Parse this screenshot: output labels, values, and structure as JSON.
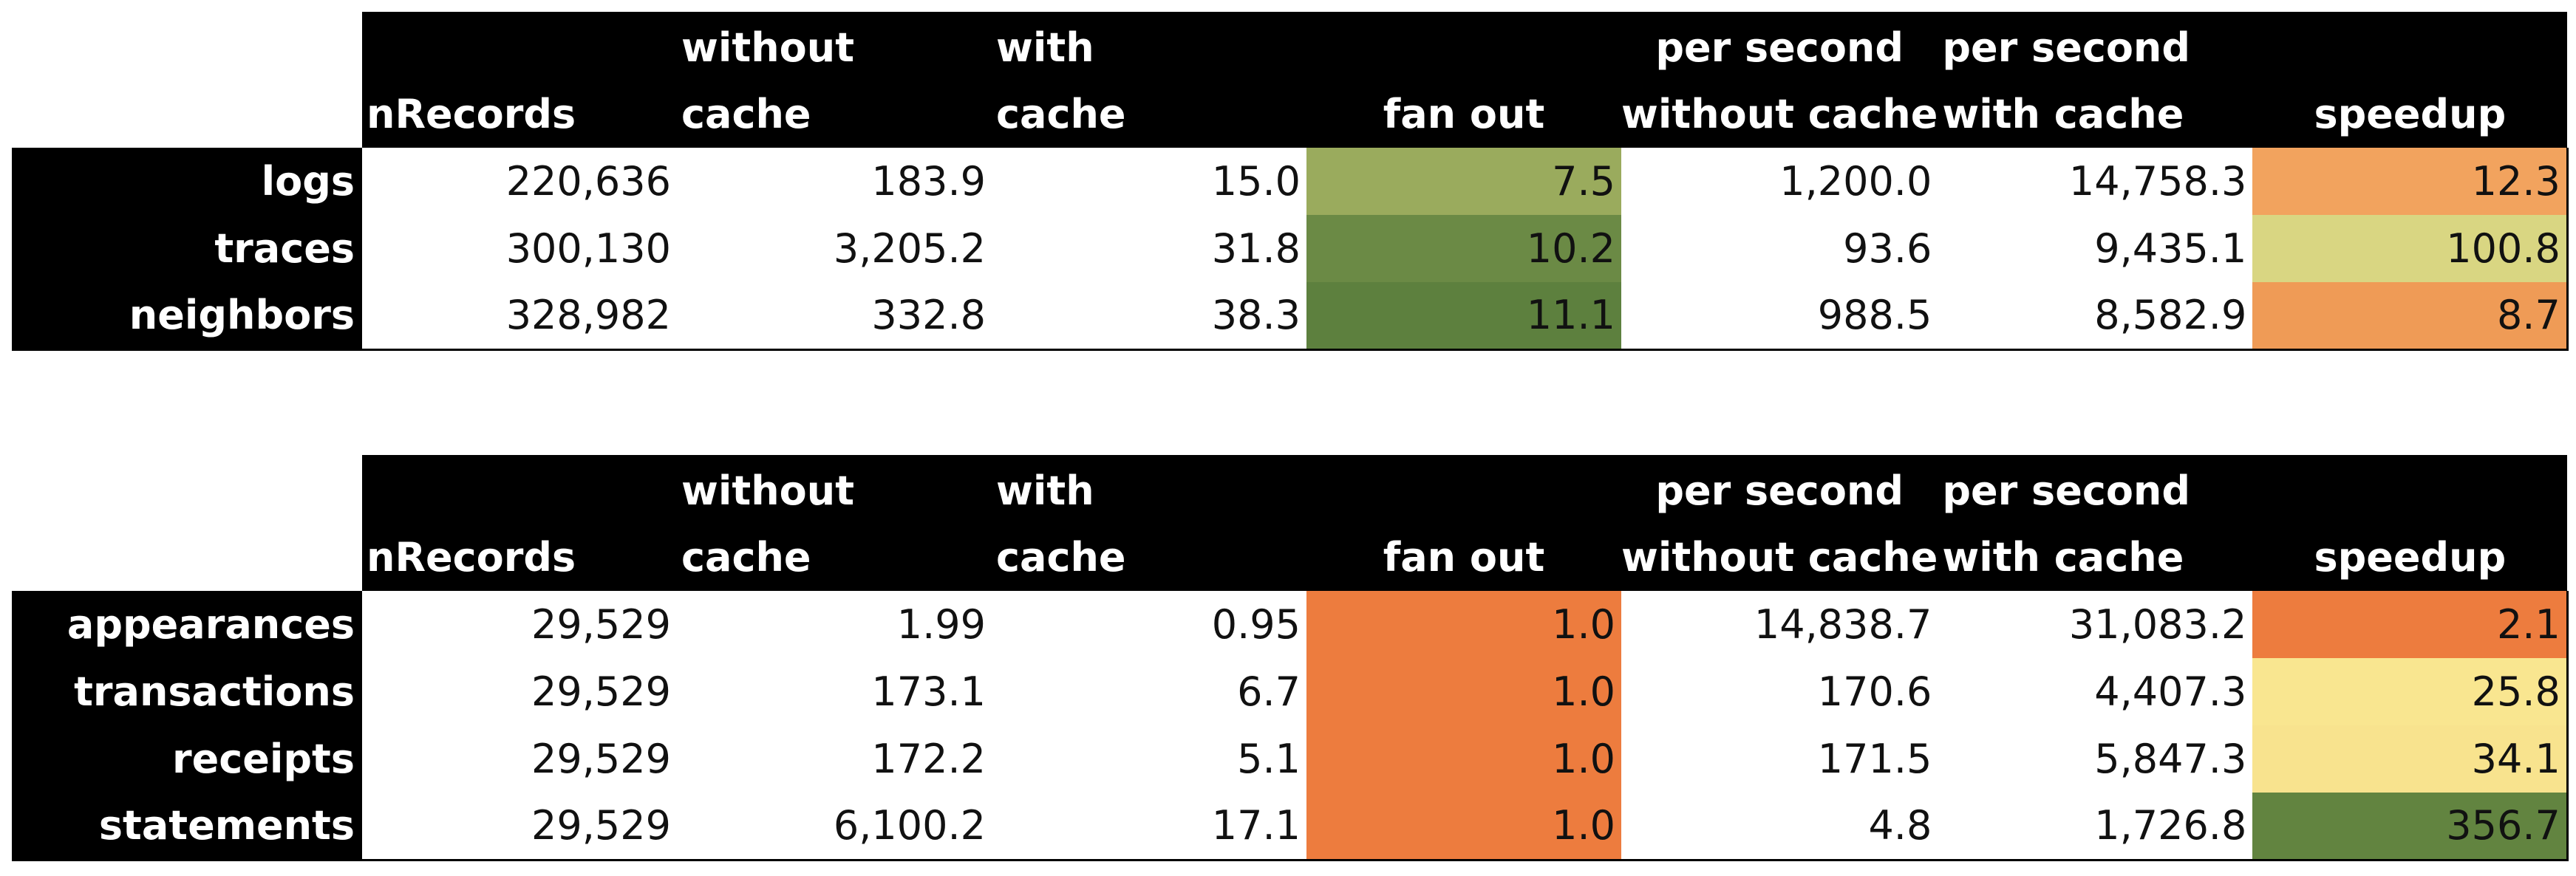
{
  "tables": [
    {
      "headers": [
        {
          "line1": "",
          "line2": "nRecords"
        },
        {
          "line1": "without",
          "line2": "cache"
        },
        {
          "line1": "with",
          "line2": "cache"
        },
        {
          "line1": "",
          "line2": "fan out"
        },
        {
          "line1": "per second",
          "line2": "without cache"
        },
        {
          "line1": "per second",
          "line2": "with cache"
        },
        {
          "line1": "",
          "line2": "speedup"
        }
      ],
      "rows": [
        {
          "label": "logs",
          "cells": [
            "220,636",
            "183.9",
            "15.0",
            "7.5",
            "1,200.0",
            "14,758.3",
            "12.3"
          ],
          "fan_out_color": "#9aab5d",
          "speedup_color": "#f2a35e"
        },
        {
          "label": "traces",
          "cells": [
            "300,130",
            "3,205.2",
            "31.8",
            "10.2",
            "93.6",
            "9,435.1",
            "100.8"
          ],
          "fan_out_color": "#6b8a45",
          "speedup_color": "#d9d682"
        },
        {
          "label": "neighbors",
          "cells": [
            "328,982",
            "332.8",
            "38.3",
            "11.1",
            "988.5",
            "8,582.9",
            "8.7"
          ],
          "fan_out_color": "#5d803e",
          "speedup_color": "#ef9b56"
        }
      ]
    },
    {
      "headers": [
        {
          "line1": "",
          "line2": "nRecords"
        },
        {
          "line1": "without",
          "line2": "cache"
        },
        {
          "line1": "with",
          "line2": "cache"
        },
        {
          "line1": "",
          "line2": "fan out"
        },
        {
          "line1": "per second",
          "line2": "without cache"
        },
        {
          "line1": "per second",
          "line2": "with cache"
        },
        {
          "line1": "",
          "line2": "speedup"
        }
      ],
      "rows": [
        {
          "label": "appearances",
          "cells": [
            "29,529",
            "1.99",
            "0.95",
            "1.0",
            "14,838.7",
            "31,083.2",
            "2.1"
          ],
          "fan_out_color": "#ed7c3e",
          "speedup_color": "#ed7c3e"
        },
        {
          "label": "transactions",
          "cells": [
            "29,529",
            "173.1",
            "6.7",
            "1.0",
            "170.6",
            "4,407.3",
            "25.8"
          ],
          "fan_out_color": "#ed7c3e",
          "speedup_color": "#f9e690"
        },
        {
          "label": "receipts",
          "cells": [
            "29,529",
            "172.2",
            "5.1",
            "1.0",
            "171.5",
            "5,847.3",
            "34.1"
          ],
          "fan_out_color": "#ed7c3e",
          "speedup_color": "#f8e38e"
        },
        {
          "label": "statements",
          "cells": [
            "29,529",
            "6,100.2",
            "17.1",
            "1.0",
            "4.8",
            "1,726.8",
            "356.7"
          ],
          "fan_out_color": "#ed7c3e",
          "speedup_color": "#628440"
        }
      ]
    }
  ]
}
